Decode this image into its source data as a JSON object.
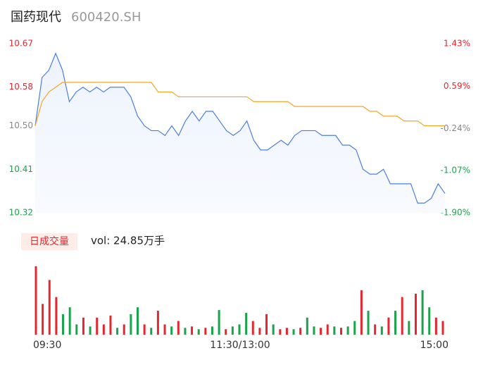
{
  "header": {
    "name": "国药现代",
    "code": "600420.SH"
  },
  "chart_data": [
    {
      "type": "line",
      "x": [
        0,
        4,
        8,
        12,
        16,
        20,
        24,
        28,
        32,
        36,
        40,
        44,
        48,
        52,
        56,
        60,
        64,
        68,
        72,
        76,
        80,
        84,
        88,
        92,
        96,
        100,
        104,
        108,
        112,
        116,
        120,
        124,
        128,
        132,
        136,
        140,
        144,
        148,
        152,
        156,
        160,
        164,
        168,
        172,
        176,
        180,
        184,
        188,
        192,
        196,
        200,
        204,
        208,
        212,
        216,
        220,
        224,
        228,
        232,
        236,
        240
      ],
      "xlim": [
        0,
        240
      ],
      "xticks": [
        {
          "value": 0,
          "label": "09:30"
        },
        {
          "value": 120,
          "label": "11:30/13:00"
        },
        {
          "value": 240,
          "label": "15:00"
        }
      ],
      "ylim": [
        10.32,
        10.67
      ],
      "yticks": [
        10.67,
        10.58,
        {
          "value": 10.5,
          "label": "10.50"
        },
        10.41,
        10.32
      ],
      "y2lim": [
        -1.9,
        1.43
      ],
      "y2ticks": [
        {
          "value": 1.43,
          "label": "1.43%"
        },
        {
          "value": 0.59,
          "label": "0.59%"
        },
        {
          "value": -0.24,
          "label": "-0.24%"
        },
        {
          "value": -1.07,
          "label": "-1.07%"
        },
        {
          "value": -1.9,
          "label": "-1.90%"
        }
      ],
      "series": [
        {
          "color": "#4a7fe0",
          "values": [
            10.5,
            10.6,
            10.615,
            10.65,
            10.615,
            10.55,
            10.57,
            10.58,
            10.57,
            10.58,
            10.57,
            10.58,
            10.58,
            10.58,
            10.56,
            10.52,
            10.5,
            10.49,
            10.49,
            10.48,
            10.5,
            10.48,
            10.51,
            10.53,
            10.51,
            10.53,
            10.53,
            10.51,
            10.49,
            10.48,
            10.49,
            10.51,
            10.47,
            10.45,
            10.45,
            10.46,
            10.47,
            10.46,
            10.48,
            10.49,
            10.49,
            10.49,
            10.48,
            10.48,
            10.48,
            10.46,
            10.46,
            10.45,
            10.41,
            10.4,
            10.4,
            10.41,
            10.38,
            10.38,
            10.38,
            10.38,
            10.34,
            10.34,
            10.35,
            10.38,
            10.36
          ]
        },
        {
          "color": "#f5a623",
          "values": [
            10.5,
            10.55,
            10.57,
            10.58,
            10.59,
            10.59,
            10.59,
            10.59,
            10.59,
            10.59,
            10.59,
            10.59,
            10.59,
            10.59,
            10.59,
            10.59,
            10.59,
            10.59,
            10.57,
            10.57,
            10.57,
            10.56,
            10.56,
            10.56,
            10.56,
            10.56,
            10.56,
            10.56,
            10.56,
            10.56,
            10.56,
            10.56,
            10.55,
            10.55,
            10.55,
            10.55,
            10.55,
            10.55,
            10.54,
            10.54,
            10.54,
            10.54,
            10.54,
            10.54,
            10.54,
            10.54,
            10.54,
            10.54,
            10.54,
            10.53,
            10.53,
            10.52,
            10.52,
            10.52,
            10.51,
            10.51,
            10.51,
            10.5,
            10.5,
            10.5,
            10.5
          ]
        }
      ]
    },
    {
      "type": "bar",
      "label": "日成交量",
      "annotation": "vol: 24.85万手",
      "x": [
        0,
        4,
        8,
        12,
        16,
        20,
        24,
        28,
        32,
        36,
        40,
        44,
        48,
        52,
        56,
        60,
        64,
        68,
        72,
        76,
        80,
        84,
        88,
        92,
        96,
        100,
        104,
        108,
        112,
        116,
        120,
        124,
        128,
        132,
        136,
        140,
        144,
        148,
        152,
        156,
        160,
        164,
        168,
        172,
        176,
        180,
        184,
        188,
        192,
        196,
        200,
        204,
        208,
        212,
        216,
        220,
        224,
        228,
        232,
        236,
        240
      ],
      "xlim": [
        0,
        240
      ],
      "xticks": [
        {
          "value": 0,
          "label": "09:30"
        },
        {
          "value": 120,
          "label": "11:30/13:00"
        },
        {
          "value": 240,
          "label": "15:00"
        }
      ],
      "ylim": [
        0,
        100
      ],
      "values": [
        100,
        45,
        80,
        55,
        30,
        40,
        15,
        25,
        12,
        25,
        15,
        28,
        10,
        15,
        30,
        40,
        15,
        10,
        35,
        15,
        12,
        20,
        10,
        12,
        8,
        10,
        12,
        36,
        8,
        12,
        15,
        32,
        20,
        10,
        30,
        15,
        8,
        10,
        8,
        10,
        25,
        12,
        10,
        15,
        12,
        10,
        12,
        20,
        65,
        35,
        15,
        12,
        25,
        35,
        55,
        20,
        60,
        65,
        40,
        25,
        20
      ],
      "colors": [
        "#e5262f",
        "#e5262f",
        "#e5262f",
        "#e5262f",
        "#1aa34a",
        "#1aa34a",
        "#1aa34a",
        "#e5262f",
        "#1aa34a",
        "#e5262f",
        "#e5262f",
        "#e5262f",
        "#1aa34a",
        "#e5262f",
        "#1aa34a",
        "#1aa34a",
        "#e5262f",
        "#1aa34a",
        "#e5262f",
        "#e5262f",
        "#1aa34a",
        "#e5262f",
        "#1aa34a",
        "#e5262f",
        "#1aa34a",
        "#e5262f",
        "#1aa34a",
        "#1aa34a",
        "#e5262f",
        "#1aa34a",
        "#1aa34a",
        "#1aa34a",
        "#e5262f",
        "#e5262f",
        "#e5262f",
        "#1aa34a",
        "#e5262f",
        "#e5262f",
        "#1aa34a",
        "#e5262f",
        "#1aa34a",
        "#1aa34a",
        "#e5262f",
        "#e5262f",
        "#1aa34a",
        "#e5262f",
        "#1aa34a",
        "#1aa34a",
        "#e5262f",
        "#1aa34a",
        "#e5262f",
        "#1aa34a",
        "#e5262f",
        "#1aa34a",
        "#e5262f",
        "#1aa34a",
        "#e5262f",
        "#1aa34a",
        "#1aa34a",
        "#e5262f",
        "#e5262f"
      ]
    }
  ]
}
